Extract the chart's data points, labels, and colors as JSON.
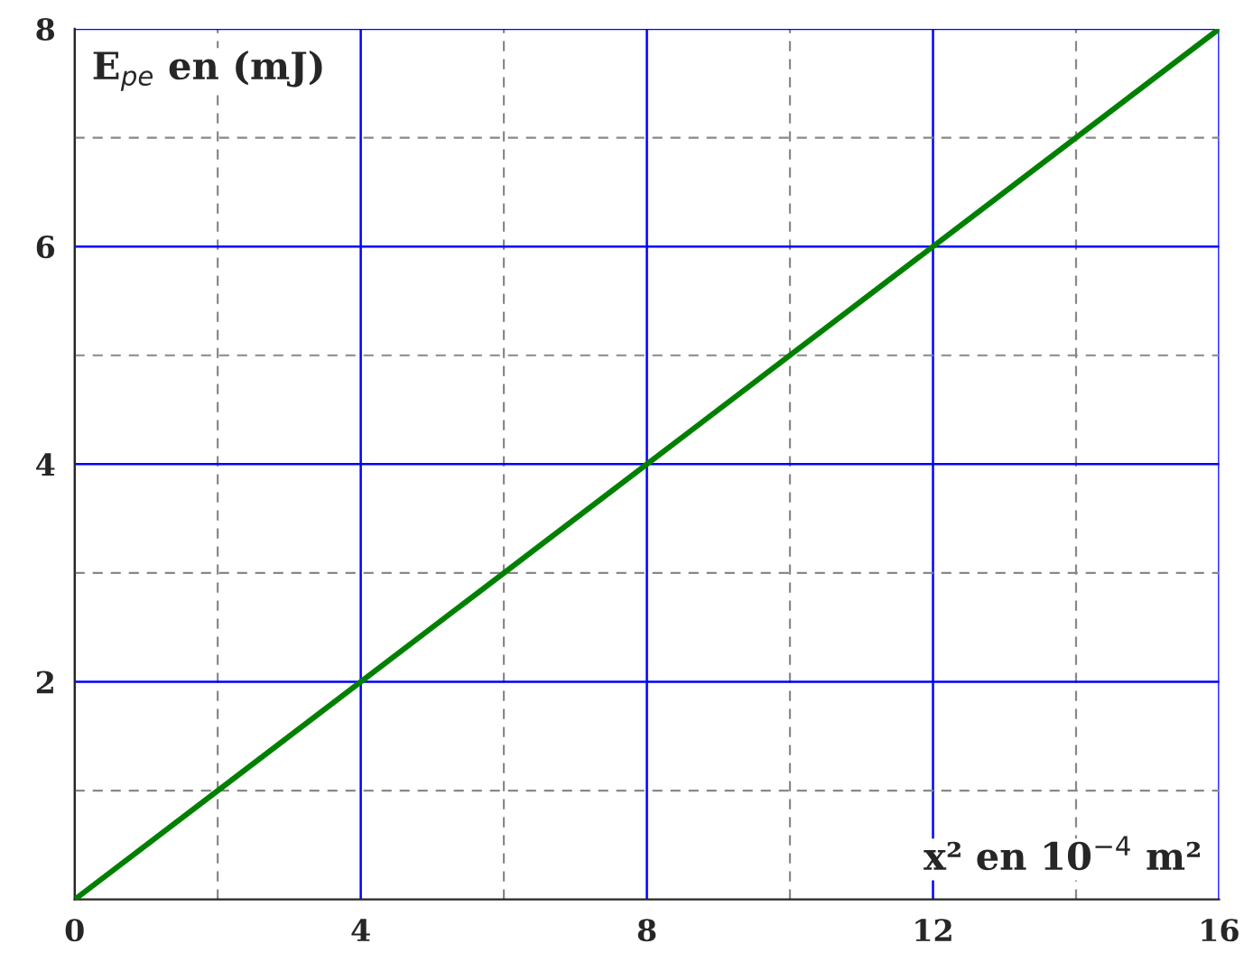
{
  "chart_data": {
    "type": "line",
    "xlabel": "x² en 10$^{−4}$ m²",
    "ylabel": "E$_{pe}$ en (mJ)",
    "x": [
      0,
      16
    ],
    "series": [
      {
        "color": "#008000",
        "values": [
          0,
          8
        ]
      }
    ],
    "xlim": [
      0,
      16
    ],
    "ylim": [
      0,
      8
    ],
    "xticks": [
      0,
      4,
      8,
      12,
      16
    ],
    "yticks": [
      2,
      4,
      6,
      8
    ],
    "grid": true,
    "marker": "none",
    "line_style": "solid"
  }
}
